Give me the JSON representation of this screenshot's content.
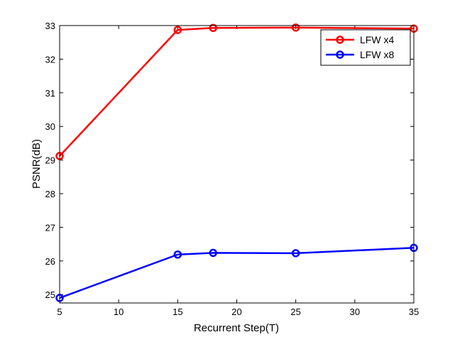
{
  "chart_data": {
    "type": "line",
    "xlabel": "Recurrent Step(T)",
    "ylabel": "PSNR(dB)",
    "xlim": [
      5,
      35
    ],
    "ylim": [
      24.75,
      33
    ],
    "xticks": [
      5,
      10,
      15,
      20,
      25,
      30,
      35
    ],
    "yticks": [
      25,
      26,
      27,
      28,
      29,
      30,
      31,
      32,
      33
    ],
    "grid": false,
    "legend_position": "top-right",
    "series": [
      {
        "name": "LFW x4",
        "color": "#ff0000",
        "marker": "circle",
        "x": [
          5,
          15,
          18,
          25,
          35
        ],
        "y": [
          29.12,
          32.87,
          32.93,
          32.94,
          32.91
        ]
      },
      {
        "name": "LFW x8",
        "color": "#0000ff",
        "marker": "circle",
        "x": [
          5,
          15,
          18,
          25,
          35
        ],
        "y": [
          24.9,
          26.19,
          26.24,
          26.23,
          26.39
        ]
      }
    ]
  }
}
